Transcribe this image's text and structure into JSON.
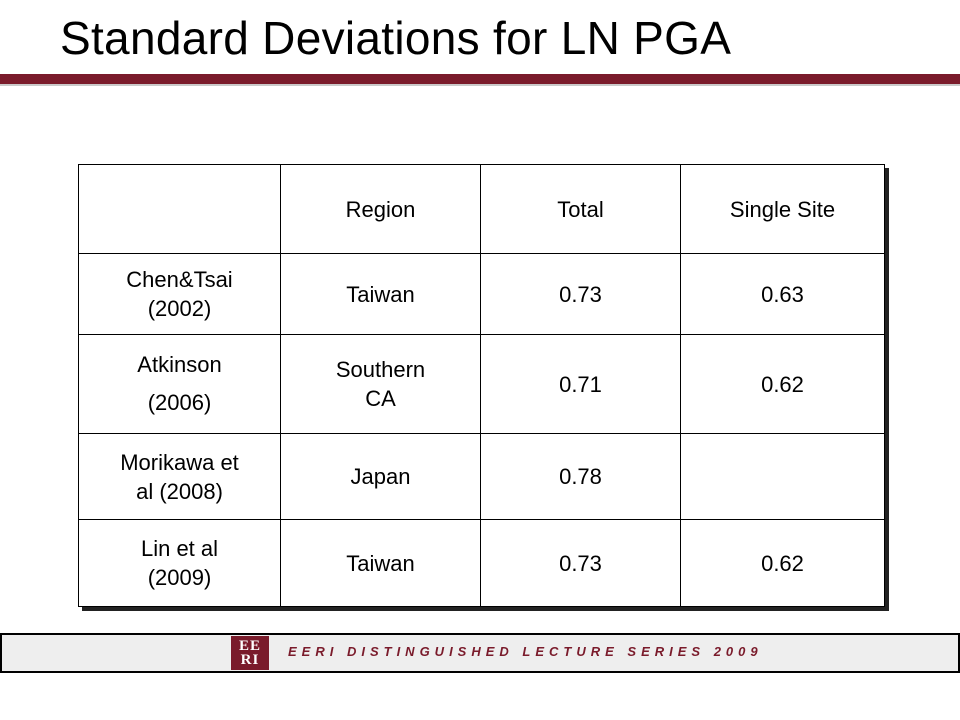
{
  "slide": {
    "title": "Standard Deviations for LN PGA",
    "accent_color": "#7a1b2b"
  },
  "table": {
    "headers": [
      "",
      "Region",
      "Total",
      "Single Site"
    ],
    "rows": [
      {
        "study": "Chen&Tsai\n(2002)",
        "region": "Taiwan",
        "total": "0.73",
        "single_site": "0.63"
      },
      {
        "study": "Atkinson\n(2006)",
        "region": "Southern\nCA",
        "total": "0.71",
        "single_site": "0.62"
      },
      {
        "study": "Morikawa et\nal (2008)",
        "region": "Japan",
        "total": "0.78",
        "single_site": ""
      },
      {
        "study": "Lin et al\n(2009)",
        "region": "Taiwan",
        "total": "0.73",
        "single_site": "0.62"
      }
    ]
  },
  "footer": {
    "logo_top": "EE",
    "logo_bottom": "RI",
    "text": "EERI DISTINGUISHED LECTURE SERIES 2009"
  }
}
